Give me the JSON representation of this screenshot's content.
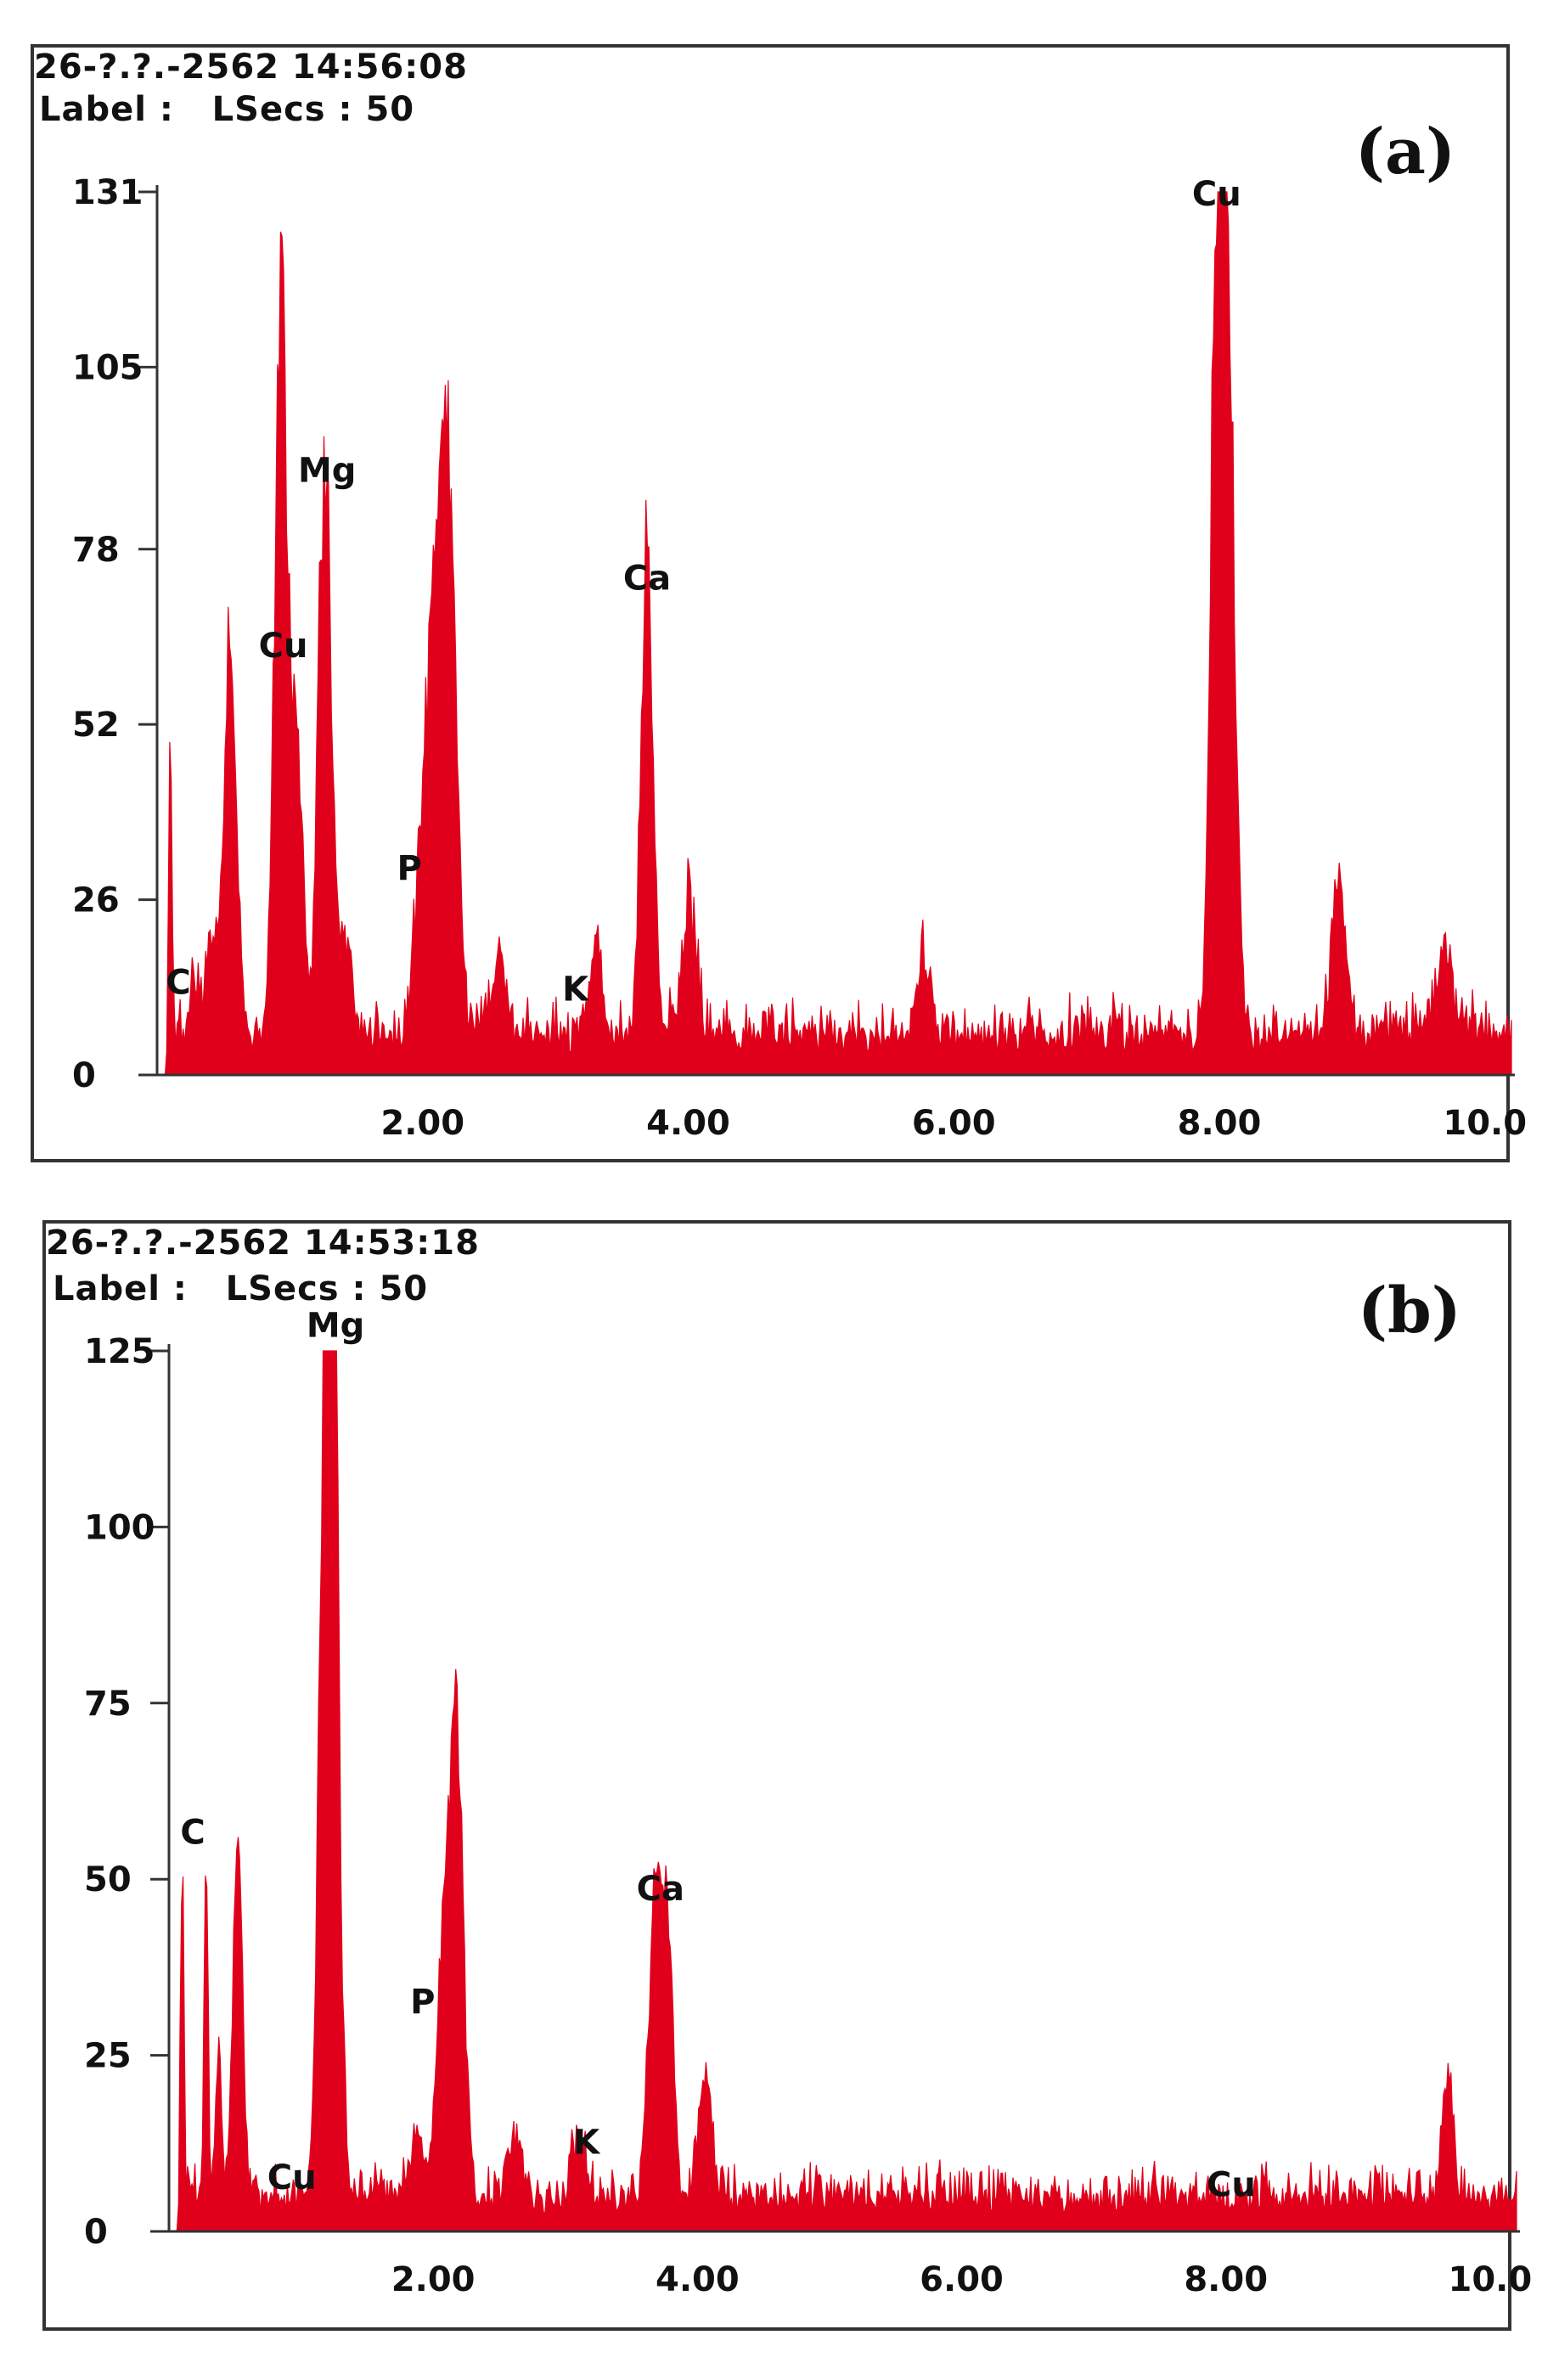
{
  "colors": {
    "spectrum": "#e0001b",
    "axis": "#333333",
    "text": "#111111"
  },
  "chart_data": [
    {
      "type": "area",
      "panel_label": "(a)",
      "timestamp": "26-?.?.-2562 14:56:08",
      "label_line": "Label :   LSecs : 50",
      "x_ticks": [
        "2.00",
        "4.00",
        "6.00",
        "8.00",
        "10.0"
      ],
      "x_tick_values": [
        2,
        4,
        6,
        8,
        10
      ],
      "xlim": [
        0,
        10.2
      ],
      "y_ticks": [
        "0",
        "26",
        "52",
        "78",
        "105",
        "131"
      ],
      "y_tick_values": [
        0,
        26,
        52,
        78,
        105,
        131
      ],
      "ylim": [
        0,
        131
      ],
      "background": 5,
      "noise": 6,
      "peaks": [
        {
          "x": 0.1,
          "y": 43,
          "w": 0.012
        },
        {
          "x": 0.28,
          "y": 8,
          "w": 0.03
        },
        {
          "x": 0.42,
          "y": 14,
          "w": 0.05
        },
        {
          "x": 0.55,
          "y": 58,
          "w": 0.045
        },
        {
          "x": 0.93,
          "y": 107,
          "w": 0.045
        },
        {
          "x": 1.05,
          "y": 40,
          "w": 0.05
        },
        {
          "x": 1.26,
          "y": 85,
          "w": 0.045
        },
        {
          "x": 1.4,
          "y": 14,
          "w": 0.06
        },
        {
          "x": 2.04,
          "y": 44,
          "w": 0.07
        },
        {
          "x": 2.14,
          "y": 62,
          "w": 0.05
        },
        {
          "x": 2.22,
          "y": 57,
          "w": 0.05
        },
        {
          "x": 2.58,
          "y": 11,
          "w": 0.05
        },
        {
          "x": 3.31,
          "y": 12,
          "w": 0.05
        },
        {
          "x": 3.69,
          "y": 73,
          "w": 0.045
        },
        {
          "x": 4.01,
          "y": 19,
          "w": 0.05
        },
        {
          "x": 5.77,
          "y": 12,
          "w": 0.05
        },
        {
          "x": 7.98,
          "y": 111,
          "w": 0.045
        },
        {
          "x": 8.07,
          "y": 98,
          "w": 0.05
        },
        {
          "x": 8.9,
          "y": 22,
          "w": 0.055
        },
        {
          "x": 9.7,
          "y": 14,
          "w": 0.05
        }
      ],
      "annotations": [
        {
          "text": "C",
          "x": 0.16,
          "y": 12
        },
        {
          "text": "Cu",
          "x": 0.95,
          "y": 62
        },
        {
          "text": "Mg",
          "x": 1.28,
          "y": 88
        },
        {
          "text": "P",
          "x": 1.9,
          "y": 29
        },
        {
          "text": "K",
          "x": 3.15,
          "y": 11
        },
        {
          "text": "Ca",
          "x": 3.69,
          "y": 72
        },
        {
          "text": "Cu",
          "x": 7.98,
          "y": 129
        }
      ]
    },
    {
      "type": "area",
      "panel_label": "(b)",
      "timestamp": "26-?.?.-2562 14:53:18",
      "label_line": "Label :   LSecs : 50",
      "x_ticks": [
        "2.00",
        "4.00",
        "6.00",
        "8.00",
        "10.0"
      ],
      "x_tick_values": [
        2,
        4,
        6,
        8,
        10
      ],
      "xlim": [
        0,
        10.2
      ],
      "y_ticks": [
        "0",
        "25",
        "50",
        "75",
        "100",
        "125"
      ],
      "y_tick_values": [
        0,
        25,
        50,
        75,
        100,
        125
      ],
      "ylim": [
        0,
        125
      ],
      "background": 4,
      "noise": 5,
      "peaks": [
        {
          "x": 0.1,
          "y": 52,
          "w": 0.012
        },
        {
          "x": 0.28,
          "y": 48,
          "w": 0.015
        },
        {
          "x": 0.38,
          "y": 24,
          "w": 0.02
        },
        {
          "x": 0.52,
          "y": 54,
          "w": 0.035
        },
        {
          "x": 1.17,
          "y": 85,
          "w": 0.045
        },
        {
          "x": 1.24,
          "y": 126,
          "w": 0.045
        },
        {
          "x": 1.88,
          "y": 9,
          "w": 0.05
        },
        {
          "x": 2.08,
          "y": 37,
          "w": 0.05
        },
        {
          "x": 2.18,
          "y": 62,
          "w": 0.05
        },
        {
          "x": 2.62,
          "y": 9,
          "w": 0.05
        },
        {
          "x": 3.1,
          "y": 9,
          "w": 0.05
        },
        {
          "x": 3.68,
          "y": 45,
          "w": 0.045
        },
        {
          "x": 3.78,
          "y": 38,
          "w": 0.04
        },
        {
          "x": 4.06,
          "y": 18,
          "w": 0.05
        },
        {
          "x": 9.68,
          "y": 16,
          "w": 0.04
        }
      ],
      "annotations": [
        {
          "text": "C",
          "x": 0.18,
          "y": 55
        },
        {
          "text": "Mg",
          "x": 1.26,
          "y": 127
        },
        {
          "text": "P",
          "x": 1.92,
          "y": 31
        },
        {
          "text": "Cu",
          "x": 0.93,
          "y": 6
        },
        {
          "text": "K",
          "x": 3.16,
          "y": 11
        },
        {
          "text": "Ca",
          "x": 3.72,
          "y": 47
        },
        {
          "text": "Cu",
          "x": 8.04,
          "y": 5
        }
      ]
    }
  ]
}
